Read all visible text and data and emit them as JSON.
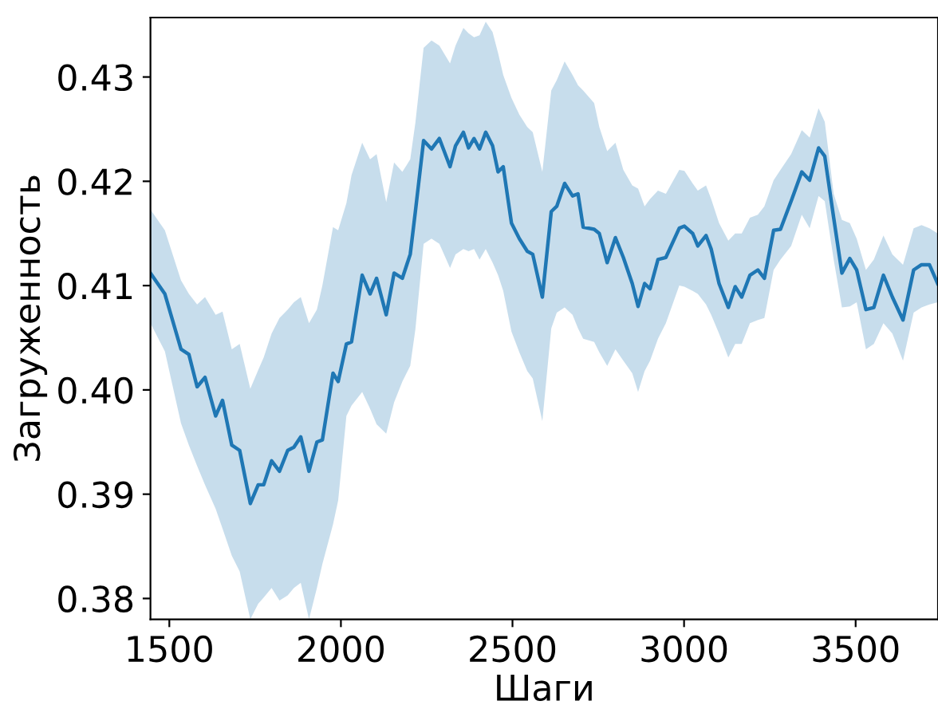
{
  "chart_data": {
    "type": "line",
    "xlabel": "Шаги",
    "ylabel": "Загруженность",
    "xlim": [
      1445,
      3740
    ],
    "xticks": [
      1500,
      2000,
      2500,
      3000,
      3500
    ],
    "ylim": [
      0.378,
      0.4357
    ],
    "yticks": [
      {
        "value": 0.38,
        "label": "0.38"
      },
      {
        "value": 0.39,
        "label": "0.39"
      },
      {
        "value": 0.4,
        "label": "0.40"
      },
      {
        "value": 0.41,
        "label": "0.41"
      },
      {
        "value": 0.42,
        "label": "0.42"
      },
      {
        "value": 0.43,
        "label": "0.43"
      }
    ],
    "grid": false,
    "legend": false,
    "series": [
      {
        "color": "#1f77b4",
        "x": [
          1445,
          1487,
          1534,
          1557,
          1581,
          1604,
          1635,
          1655,
          1682,
          1705,
          1736,
          1759,
          1775,
          1798,
          1821,
          1845,
          1863,
          1883,
          1907,
          1930,
          1946,
          1977,
          1992,
          2016,
          2031,
          2062,
          2085,
          2104,
          2132,
          2155,
          2179,
          2202,
          2217,
          2241,
          2264,
          2287,
          2318,
          2334,
          2357,
          2372,
          2388,
          2404,
          2422,
          2442,
          2458,
          2473,
          2497,
          2520,
          2543,
          2559,
          2587,
          2613,
          2629,
          2652,
          2675,
          2691,
          2706,
          2738,
          2753,
          2776,
          2800,
          2823,
          2849,
          2866,
          2885,
          2901,
          2924,
          2947,
          2986,
          3001,
          3025,
          3040,
          3064,
          3079,
          3102,
          3129,
          3149,
          3168,
          3192,
          3215,
          3234,
          3261,
          3281,
          3312,
          3343,
          3366,
          3392,
          3410,
          3436,
          3460,
          3483,
          3503,
          3530,
          3553,
          3581,
          3607,
          3638,
          3669,
          3692,
          3715,
          3739
        ],
        "values": [
          0.4112,
          0.4092,
          0.4039,
          0.4034,
          0.4003,
          0.4012,
          0.3975,
          0.399,
          0.3947,
          0.3942,
          0.3891,
          0.3909,
          0.3909,
          0.3932,
          0.3922,
          0.3942,
          0.3945,
          0.3955,
          0.3922,
          0.395,
          0.3952,
          0.4016,
          0.4008,
          0.4044,
          0.4046,
          0.411,
          0.4092,
          0.4107,
          0.4072,
          0.4112,
          0.4107,
          0.413,
          0.4171,
          0.4239,
          0.4231,
          0.4241,
          0.4214,
          0.4234,
          0.4247,
          0.4232,
          0.4241,
          0.4231,
          0.4247,
          0.4234,
          0.4209,
          0.4214,
          0.416,
          0.4145,
          0.4133,
          0.413,
          0.4089,
          0.4171,
          0.4176,
          0.4198,
          0.4186,
          0.4188,
          0.4156,
          0.4154,
          0.415,
          0.4122,
          0.4146,
          0.4127,
          0.4102,
          0.408,
          0.4102,
          0.4097,
          0.4125,
          0.4127,
          0.4155,
          0.4157,
          0.415,
          0.4138,
          0.4148,
          0.4135,
          0.4102,
          0.4079,
          0.4099,
          0.4089,
          0.411,
          0.4115,
          0.4107,
          0.4153,
          0.4154,
          0.4181,
          0.4209,
          0.4201,
          0.4232,
          0.4224,
          0.4165,
          0.4112,
          0.4126,
          0.4115,
          0.4077,
          0.4079,
          0.411,
          0.4089,
          0.4067,
          0.4115,
          0.412,
          0.412,
          0.4102
        ],
        "upper": [
          0.4173,
          0.4153,
          0.4105,
          0.4092,
          0.4082,
          0.4089,
          0.4072,
          0.4075,
          0.4039,
          0.4044,
          0.4001,
          0.4019,
          0.4031,
          0.4054,
          0.4069,
          0.4077,
          0.4084,
          0.4089,
          0.4064,
          0.4077,
          0.41,
          0.4156,
          0.4153,
          0.4179,
          0.4206,
          0.4237,
          0.4221,
          0.4226,
          0.418,
          0.4218,
          0.4209,
          0.4221,
          0.4256,
          0.4328,
          0.4335,
          0.433,
          0.4313,
          0.433,
          0.4347,
          0.4342,
          0.4338,
          0.434,
          0.4353,
          0.4343,
          0.4323,
          0.4302,
          0.428,
          0.4264,
          0.4252,
          0.4247,
          0.4209,
          0.4287,
          0.4297,
          0.4315,
          0.4302,
          0.4292,
          0.4287,
          0.4275,
          0.4252,
          0.4229,
          0.4237,
          0.4211,
          0.4196,
          0.4193,
          0.4176,
          0.4183,
          0.4191,
          0.4188,
          0.4211,
          0.421,
          0.4198,
          0.4191,
          0.4196,
          0.4183,
          0.416,
          0.4143,
          0.415,
          0.415,
          0.4165,
          0.4168,
          0.4176,
          0.4201,
          0.4211,
          0.4226,
          0.4249,
          0.4242,
          0.427,
          0.4257,
          0.4188,
          0.4163,
          0.416,
          0.4145,
          0.4115,
          0.4125,
          0.4148,
          0.413,
          0.412,
          0.4155,
          0.4158,
          0.4155,
          0.415
        ],
        "lower": [
          0.4064,
          0.4037,
          0.3968,
          0.3947,
          0.3927,
          0.3909,
          0.3886,
          0.3867,
          0.3841,
          0.3826,
          0.378,
          0.3795,
          0.3801,
          0.381,
          0.3798,
          0.3803,
          0.381,
          0.3815,
          0.378,
          0.381,
          0.3833,
          0.3871,
          0.3894,
          0.3975,
          0.3985,
          0.3998,
          0.3982,
          0.3967,
          0.3958,
          0.3988,
          0.4008,
          0.4023,
          0.4058,
          0.414,
          0.4145,
          0.414,
          0.4117,
          0.413,
          0.4135,
          0.4133,
          0.4135,
          0.4125,
          0.4135,
          0.4122,
          0.411,
          0.4095,
          0.4056,
          0.4036,
          0.4018,
          0.4011,
          0.397,
          0.4059,
          0.4074,
          0.4079,
          0.4072,
          0.4059,
          0.4049,
          0.4046,
          0.4036,
          0.4023,
          0.4039,
          0.4028,
          0.4016,
          0.3998,
          0.4018,
          0.4028,
          0.4049,
          0.4064,
          0.41,
          0.4099,
          0.4095,
          0.4092,
          0.4082,
          0.4072,
          0.4054,
          0.4031,
          0.4044,
          0.4044,
          0.4064,
          0.4067,
          0.4069,
          0.4115,
          0.4125,
          0.4138,
          0.4168,
          0.4155,
          0.4186,
          0.4181,
          0.4125,
          0.4079,
          0.408,
          0.4084,
          0.4039,
          0.4044,
          0.4064,
          0.4054,
          0.4028,
          0.4074,
          0.4079,
          0.4082,
          0.4084
        ]
      }
    ]
  }
}
